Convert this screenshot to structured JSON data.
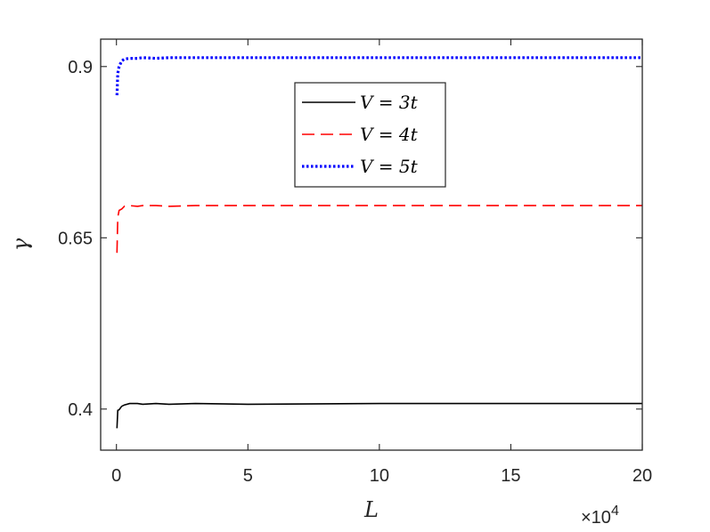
{
  "chart_data": {
    "type": "line",
    "xlabel": "L",
    "ylabel": "γ",
    "x_multiplier_label": {
      "times": "×10",
      "exponent": "4"
    },
    "xlim": [
      -0.6,
      20
    ],
    "ylim": [
      0.34,
      0.94
    ],
    "x_ticks": [
      0,
      5,
      10,
      15,
      20
    ],
    "x_tick_labels": [
      "0",
      "5",
      "10",
      "15",
      "20"
    ],
    "y_ticks": [
      0.4,
      0.65,
      0.9
    ],
    "y_tick_labels": [
      "0.4",
      "0.65",
      "0.9"
    ],
    "grid": false,
    "legend_position": "top-center",
    "series": [
      {
        "name": "V = 3t",
        "color": "#000000",
        "dash": "solid",
        "x": [
          0.02,
          0.05,
          0.1,
          0.2,
          0.3,
          0.5,
          0.8,
          1,
          1.5,
          2,
          3,
          5,
          10,
          15,
          20
        ],
        "y": [
          0.372,
          0.398,
          0.399,
          0.404,
          0.406,
          0.408,
          0.408,
          0.407,
          0.408,
          0.407,
          0.408,
          0.407,
          0.408,
          0.408,
          0.408
        ]
      },
      {
        "name": "V = 4t",
        "color": "#ff0000",
        "dash": "dashed",
        "x": [
          0.02,
          0.05,
          0.1,
          0.2,
          0.3,
          0.5,
          0.8,
          1,
          1.5,
          2,
          3,
          5,
          10,
          15,
          20
        ],
        "y": [
          0.628,
          0.68,
          0.69,
          0.692,
          0.696,
          0.697,
          0.696,
          0.697,
          0.697,
          0.696,
          0.697,
          0.697,
          0.697,
          0.697,
          0.697
        ]
      },
      {
        "name": "V = 5t",
        "color": "#0000ff",
        "dash": "dotted",
        "x": [
          0.02,
          0.05,
          0.1,
          0.2,
          0.3,
          0.5,
          0.8,
          1,
          1.5,
          2,
          3,
          5,
          10,
          15,
          20
        ],
        "y": [
          0.858,
          0.89,
          0.9,
          0.908,
          0.911,
          0.912,
          0.912,
          0.913,
          0.912,
          0.913,
          0.913,
          0.913,
          0.913,
          0.913,
          0.913
        ]
      }
    ]
  }
}
